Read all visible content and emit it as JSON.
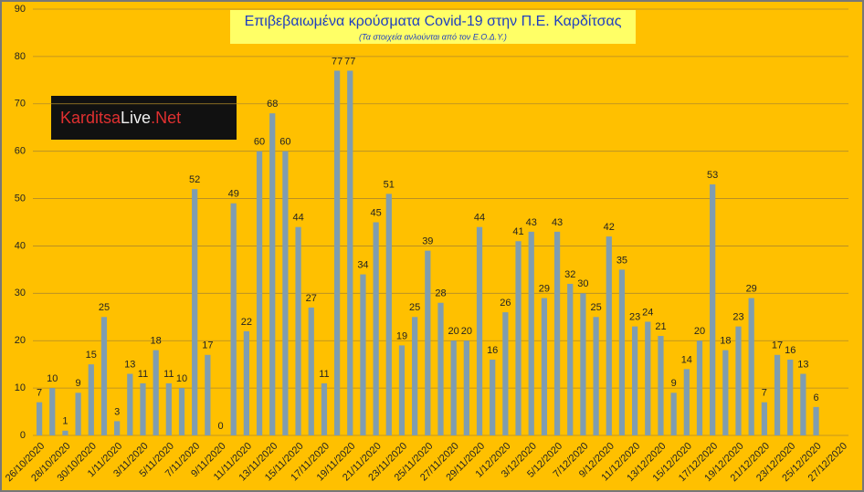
{
  "chart_data": {
    "type": "bar",
    "title": "Επιβεβαιωμένα κρούσματα Covid-19 στην Π.Ε. Καρδίτσας",
    "subtitle": "(Τα στοιχεία ανλούνται από τον Ε.Ο.Δ.Υ.)",
    "logo": [
      "Karditsa",
      "Live",
      ".Net"
    ],
    "categories": [
      "26/10/2020",
      null,
      "28/10/2020",
      null,
      "30/10/2020",
      null,
      "1/11/2020",
      null,
      "3/11/2020",
      null,
      "5/11/2020",
      null,
      "7/11/2020",
      null,
      "9/11/2020",
      null,
      "11/11/2020",
      null,
      "13/11/2020",
      null,
      "15/11/2020",
      null,
      "17/11/2020",
      null,
      "19/11/2020",
      null,
      "21/11/2020",
      null,
      "23/11/2020",
      null,
      "25/11/2020",
      null,
      "27/11/2020",
      null,
      "29/11/2020",
      null,
      "1/12/2020",
      null,
      "3/12/2020",
      null,
      "5/12/2020",
      null,
      "7/12/2020",
      null,
      "9/12/2020",
      null,
      "11/12/2020",
      null,
      "13/12/2020",
      null,
      "15/12/2020",
      null,
      "17/12/2020",
      null,
      "19/12/2020",
      null,
      "21/12/2020",
      null,
      "23/12/2020",
      null,
      "25/12/2020",
      null,
      "27/12/2020"
    ],
    "values": [
      7,
      10,
      1,
      9,
      15,
      25,
      3,
      13,
      11,
      18,
      11,
      10,
      52,
      17,
      0,
      49,
      22,
      60,
      68,
      60,
      44,
      27,
      11,
      77,
      77,
      34,
      45,
      51,
      19,
      25,
      39,
      28,
      20,
      20,
      44,
      16,
      26,
      41,
      43,
      29,
      43,
      32,
      30,
      25,
      42,
      35,
      23,
      24,
      21,
      9,
      14,
      20,
      53,
      18,
      23,
      29,
      7,
      17,
      16,
      13,
      6,
      null,
      null
    ],
    "color": "#7f9db0",
    "ylim": [
      0,
      90
    ],
    "yticks": [
      0,
      10,
      20,
      30,
      40,
      50,
      60,
      70,
      80,
      90
    ],
    "grid": true
  }
}
